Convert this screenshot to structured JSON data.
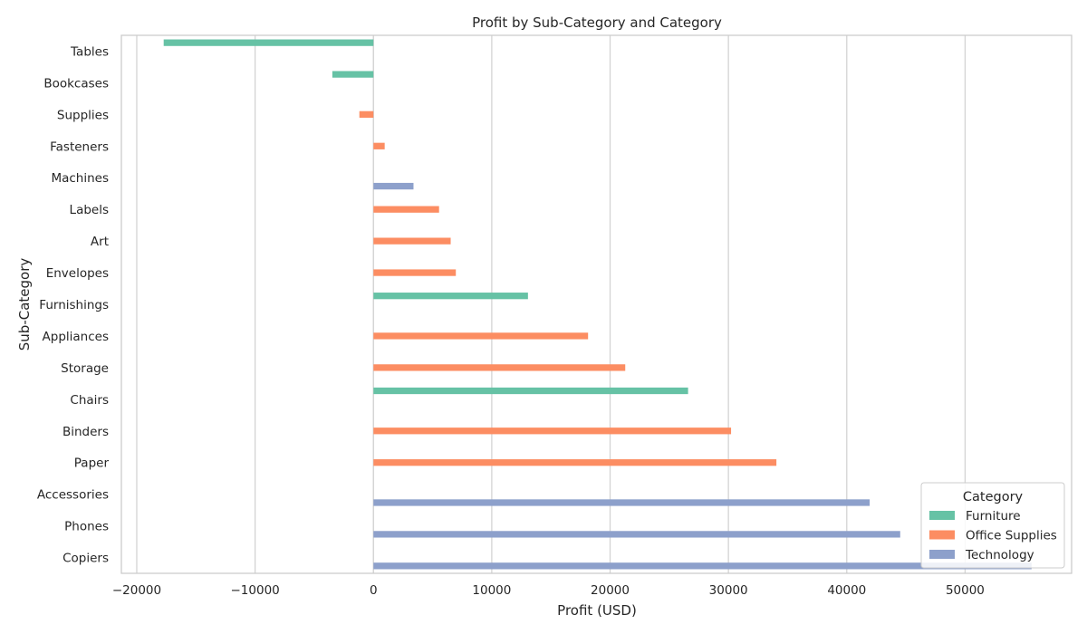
{
  "chart_data": {
    "type": "bar",
    "orientation": "horizontal",
    "title": "Profit by Sub-Category and Category",
    "xlabel": "Profit (USD)",
    "ylabel": "Sub-Category",
    "xlim": [
      -21300,
      59000
    ],
    "xticks": [
      -20000,
      -10000,
      0,
      10000,
      20000,
      30000,
      40000,
      50000
    ],
    "xtick_labels": [
      "−20000",
      "−10000",
      "0",
      "10000",
      "20000",
      "30000",
      "40000",
      "50000"
    ],
    "grid": "x",
    "legend": {
      "title": "Category",
      "placement": "lower-right"
    },
    "hue_order": [
      "Furniture",
      "Office Supplies",
      "Technology"
    ],
    "colors": {
      "Furniture": "#66c2a5",
      "Office Supplies": "#fc8d62",
      "Technology": "#8da0cb"
    },
    "categories": [
      "Tables",
      "Bookcases",
      "Supplies",
      "Fasteners",
      "Machines",
      "Labels",
      "Art",
      "Envelopes",
      "Furnishings",
      "Appliances",
      "Storage",
      "Chairs",
      "Binders",
      "Paper",
      "Accessories",
      "Phones",
      "Copiers"
    ],
    "bars": [
      {
        "subcategory": "Tables",
        "category": "Furniture",
        "value": -17725
      },
      {
        "subcategory": "Bookcases",
        "category": "Furniture",
        "value": -3473
      },
      {
        "subcategory": "Supplies",
        "category": "Office Supplies",
        "value": -1189
      },
      {
        "subcategory": "Fasteners",
        "category": "Office Supplies",
        "value": 950
      },
      {
        "subcategory": "Machines",
        "category": "Technology",
        "value": 3385
      },
      {
        "subcategory": "Labels",
        "category": "Office Supplies",
        "value": 5546
      },
      {
        "subcategory": "Art",
        "category": "Office Supplies",
        "value": 6528
      },
      {
        "subcategory": "Envelopes",
        "category": "Office Supplies",
        "value": 6964
      },
      {
        "subcategory": "Furnishings",
        "category": "Furniture",
        "value": 13059
      },
      {
        "subcategory": "Appliances",
        "category": "Office Supplies",
        "value": 18138
      },
      {
        "subcategory": "Storage",
        "category": "Office Supplies",
        "value": 21279
      },
      {
        "subcategory": "Chairs",
        "category": "Furniture",
        "value": 26590
      },
      {
        "subcategory": "Binders",
        "category": "Office Supplies",
        "value": 30222
      },
      {
        "subcategory": "Paper",
        "category": "Office Supplies",
        "value": 34053
      },
      {
        "subcategory": "Accessories",
        "category": "Technology",
        "value": 41937
      },
      {
        "subcategory": "Phones",
        "category": "Technology",
        "value": 44516
      },
      {
        "subcategory": "Copiers",
        "category": "Technology",
        "value": 55618
      }
    ]
  }
}
